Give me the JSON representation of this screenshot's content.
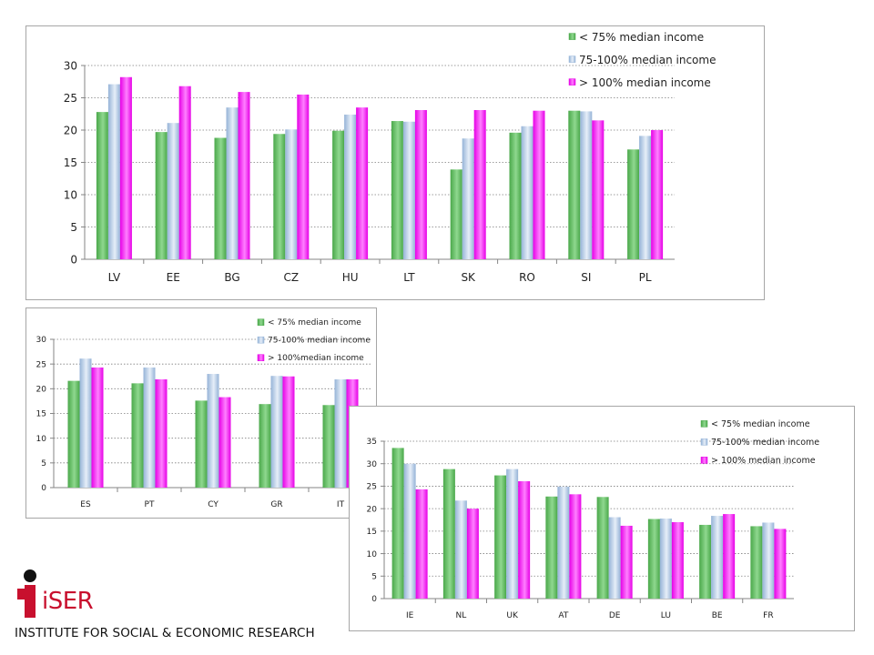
{
  "colors": {
    "green": "#4aa84a",
    "green_light": "#8fd88f",
    "blue": "#95b3d7",
    "blue_light": "#e6eef8",
    "magenta": "#e600e6",
    "magenta_light": "#ff80ff",
    "grid": "#7f7f7f",
    "axis": "#868686",
    "logo_red": "#c8102e"
  },
  "logo": {
    "word": "iSER",
    "tagline": "INSTITUTE FOR SOCIAL & ECONOMIC RESEARCH"
  },
  "chart_data": [
    {
      "type": "bar",
      "categories": [
        "LV",
        "EE",
        "BG",
        "CZ",
        "HU",
        "LT",
        "SK",
        "RO",
        "SI",
        "PL"
      ],
      "ylim": [
        0,
        30
      ],
      "yticks": [
        0,
        5,
        10,
        15,
        20,
        25,
        30
      ],
      "grid": true,
      "legend_position": "top-right",
      "series": [
        {
          "name": "< 75% median income",
          "values": [
            22.8,
            19.7,
            18.8,
            19.4,
            19.9,
            21.4,
            13.9,
            19.6,
            23.0,
            17.0
          ]
        },
        {
          "name": "75-100% median income",
          "values": [
            27.1,
            21.1,
            23.5,
            20.1,
            22.4,
            21.3,
            18.7,
            20.6,
            22.9,
            19.1
          ]
        },
        {
          "name": "> 100% median income",
          "values": [
            28.2,
            26.8,
            25.9,
            25.5,
            23.5,
            23.1,
            23.1,
            23.0,
            21.5,
            20.0
          ]
        }
      ]
    },
    {
      "type": "bar",
      "categories": [
        "ES",
        "PT",
        "CY",
        "GR",
        "IT"
      ],
      "ylim": [
        0,
        30
      ],
      "yticks": [
        0,
        5,
        10,
        15,
        20,
        25,
        30
      ],
      "grid": true,
      "legend_position": "top-right",
      "series": [
        {
          "name": "< 75% median income",
          "values": [
            21.6,
            21.1,
            17.6,
            16.9,
            16.7
          ]
        },
        {
          "name": "75-100% median income",
          "values": [
            26.1,
            24.3,
            23.0,
            22.6,
            21.9
          ]
        },
        {
          "name": "> 100%median income",
          "values": [
            24.3,
            21.9,
            18.3,
            22.5,
            21.9
          ]
        }
      ]
    },
    {
      "type": "bar",
      "categories": [
        "IE",
        "NL",
        "UK",
        "AT",
        "DE",
        "LU",
        "BE",
        "FR"
      ],
      "ylim": [
        0,
        35
      ],
      "yticks": [
        0,
        5,
        10,
        15,
        20,
        25,
        30,
        35
      ],
      "grid": true,
      "legend_position": "top-right",
      "series": [
        {
          "name": "< 75% median income",
          "values": [
            33.5,
            28.8,
            27.4,
            22.7,
            22.6,
            17.7,
            16.4,
            16.1
          ]
        },
        {
          "name": "75-100% median income",
          "values": [
            30.0,
            21.8,
            28.8,
            24.9,
            18.1,
            17.8,
            18.4,
            16.9
          ]
        },
        {
          "name": "> 100% median income",
          "values": [
            24.3,
            20.0,
            26.1,
            23.2,
            16.2,
            17.0,
            18.8,
            15.5
          ]
        }
      ]
    }
  ]
}
